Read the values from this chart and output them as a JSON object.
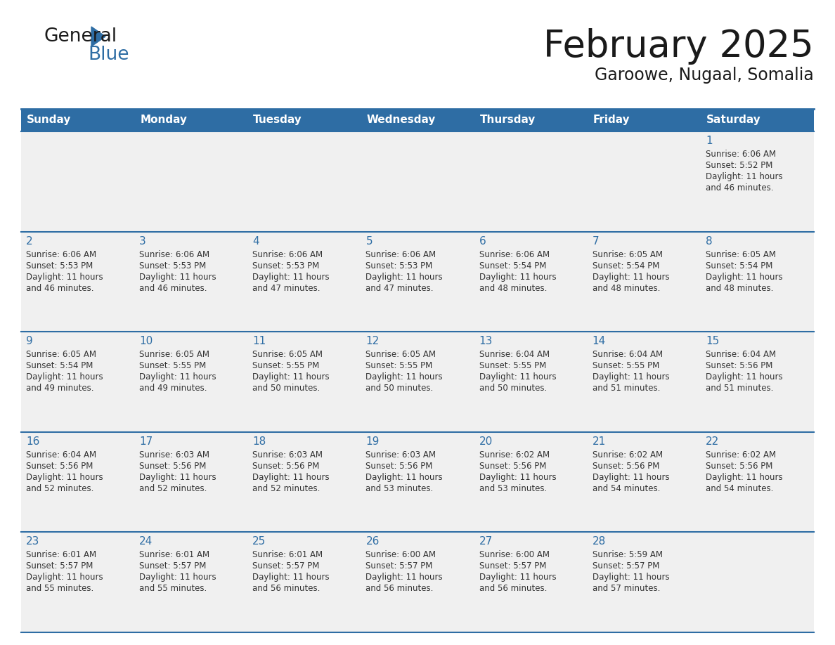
{
  "title": "February 2025",
  "subtitle": "Garoowe, Nugaal, Somalia",
  "header_bg": "#2E6DA4",
  "header_text_color": "#FFFFFF",
  "cell_bg": "#F0F0F0",
  "day_number_color": "#2E6DA4",
  "text_color": "#333333",
  "border_color": "#2E6DA4",
  "weekdays": [
    "Sunday",
    "Monday",
    "Tuesday",
    "Wednesday",
    "Thursday",
    "Friday",
    "Saturday"
  ],
  "weeks": [
    [
      {
        "day": null,
        "sunrise": null,
        "sunset": null,
        "daylight": null
      },
      {
        "day": null,
        "sunrise": null,
        "sunset": null,
        "daylight": null
      },
      {
        "day": null,
        "sunrise": null,
        "sunset": null,
        "daylight": null
      },
      {
        "day": null,
        "sunrise": null,
        "sunset": null,
        "daylight": null
      },
      {
        "day": null,
        "sunrise": null,
        "sunset": null,
        "daylight": null
      },
      {
        "day": null,
        "sunrise": null,
        "sunset": null,
        "daylight": null
      },
      {
        "day": 1,
        "sunrise": "6:06 AM",
        "sunset": "5:52 PM",
        "daylight": "11 hours and 46 minutes."
      }
    ],
    [
      {
        "day": 2,
        "sunrise": "6:06 AM",
        "sunset": "5:53 PM",
        "daylight": "11 hours and 46 minutes."
      },
      {
        "day": 3,
        "sunrise": "6:06 AM",
        "sunset": "5:53 PM",
        "daylight": "11 hours and 46 minutes."
      },
      {
        "day": 4,
        "sunrise": "6:06 AM",
        "sunset": "5:53 PM",
        "daylight": "11 hours and 47 minutes."
      },
      {
        "day": 5,
        "sunrise": "6:06 AM",
        "sunset": "5:53 PM",
        "daylight": "11 hours and 47 minutes."
      },
      {
        "day": 6,
        "sunrise": "6:06 AM",
        "sunset": "5:54 PM",
        "daylight": "11 hours and 48 minutes."
      },
      {
        "day": 7,
        "sunrise": "6:05 AM",
        "sunset": "5:54 PM",
        "daylight": "11 hours and 48 minutes."
      },
      {
        "day": 8,
        "sunrise": "6:05 AM",
        "sunset": "5:54 PM",
        "daylight": "11 hours and 48 minutes."
      }
    ],
    [
      {
        "day": 9,
        "sunrise": "6:05 AM",
        "sunset": "5:54 PM",
        "daylight": "11 hours and 49 minutes."
      },
      {
        "day": 10,
        "sunrise": "6:05 AM",
        "sunset": "5:55 PM",
        "daylight": "11 hours and 49 minutes."
      },
      {
        "day": 11,
        "sunrise": "6:05 AM",
        "sunset": "5:55 PM",
        "daylight": "11 hours and 50 minutes."
      },
      {
        "day": 12,
        "sunrise": "6:05 AM",
        "sunset": "5:55 PM",
        "daylight": "11 hours and 50 minutes."
      },
      {
        "day": 13,
        "sunrise": "6:04 AM",
        "sunset": "5:55 PM",
        "daylight": "11 hours and 50 minutes."
      },
      {
        "day": 14,
        "sunrise": "6:04 AM",
        "sunset": "5:55 PM",
        "daylight": "11 hours and 51 minutes."
      },
      {
        "day": 15,
        "sunrise": "6:04 AM",
        "sunset": "5:56 PM",
        "daylight": "11 hours and 51 minutes."
      }
    ],
    [
      {
        "day": 16,
        "sunrise": "6:04 AM",
        "sunset": "5:56 PM",
        "daylight": "11 hours and 52 minutes."
      },
      {
        "day": 17,
        "sunrise": "6:03 AM",
        "sunset": "5:56 PM",
        "daylight": "11 hours and 52 minutes."
      },
      {
        "day": 18,
        "sunrise": "6:03 AM",
        "sunset": "5:56 PM",
        "daylight": "11 hours and 52 minutes."
      },
      {
        "day": 19,
        "sunrise": "6:03 AM",
        "sunset": "5:56 PM",
        "daylight": "11 hours and 53 minutes."
      },
      {
        "day": 20,
        "sunrise": "6:02 AM",
        "sunset": "5:56 PM",
        "daylight": "11 hours and 53 minutes."
      },
      {
        "day": 21,
        "sunrise": "6:02 AM",
        "sunset": "5:56 PM",
        "daylight": "11 hours and 54 minutes."
      },
      {
        "day": 22,
        "sunrise": "6:02 AM",
        "sunset": "5:56 PM",
        "daylight": "11 hours and 54 minutes."
      }
    ],
    [
      {
        "day": 23,
        "sunrise": "6:01 AM",
        "sunset": "5:57 PM",
        "daylight": "11 hours and 55 minutes."
      },
      {
        "day": 24,
        "sunrise": "6:01 AM",
        "sunset": "5:57 PM",
        "daylight": "11 hours and 55 minutes."
      },
      {
        "day": 25,
        "sunrise": "6:01 AM",
        "sunset": "5:57 PM",
        "daylight": "11 hours and 56 minutes."
      },
      {
        "day": 26,
        "sunrise": "6:00 AM",
        "sunset": "5:57 PM",
        "daylight": "11 hours and 56 minutes."
      },
      {
        "day": 27,
        "sunrise": "6:00 AM",
        "sunset": "5:57 PM",
        "daylight": "11 hours and 56 minutes."
      },
      {
        "day": 28,
        "sunrise": "5:59 AM",
        "sunset": "5:57 PM",
        "daylight": "11 hours and 57 minutes."
      },
      {
        "day": null,
        "sunrise": null,
        "sunset": null,
        "daylight": null
      }
    ]
  ]
}
